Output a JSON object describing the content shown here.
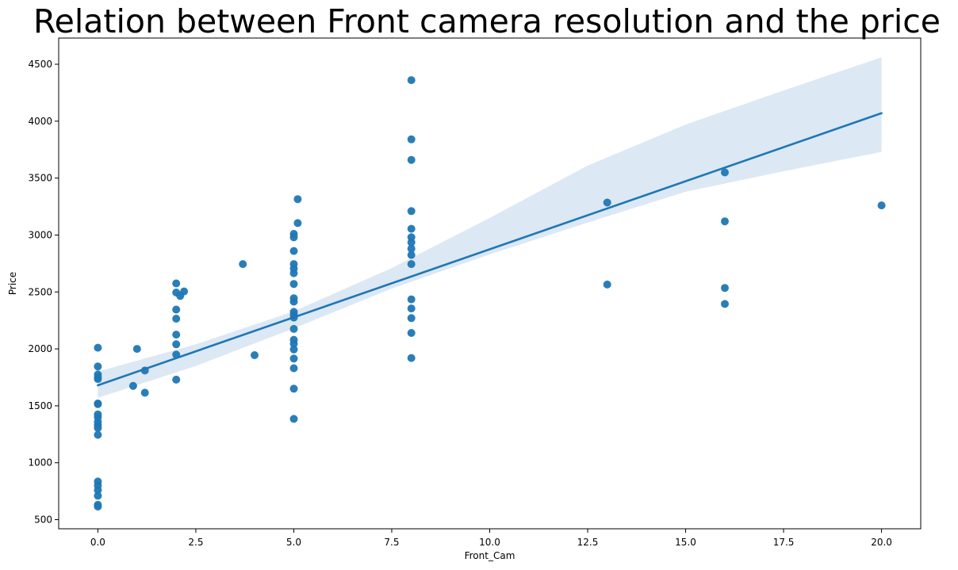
{
  "chart_data": {
    "type": "scatter",
    "title": "Relation between Front camera resolution and the price",
    "xlabel": "Front_Cam",
    "ylabel": "Price",
    "xlim": [
      -1.0,
      21.0
    ],
    "ylim": [
      420,
      4730
    ],
    "xticks": [
      0.0,
      2.5,
      5.0,
      7.5,
      10.0,
      12.5,
      15.0,
      17.5,
      20.0
    ],
    "xtick_labels": [
      "0.0",
      "2.5",
      "5.0",
      "7.5",
      "10.0",
      "12.5",
      "15.0",
      "17.5",
      "20.0"
    ],
    "yticks": [
      500,
      1000,
      1500,
      2000,
      2500,
      3000,
      3500,
      4000,
      4500
    ],
    "ytick_labels": [
      "500",
      "1000",
      "1500",
      "2000",
      "2500",
      "3000",
      "3500",
      "4000",
      "4500"
    ],
    "grid": false,
    "colors": {
      "points": "#1f77b4",
      "line": "#1f77b4",
      "band": "#dce8f4"
    },
    "points": [
      {
        "x": 0,
        "y": 2010
      },
      {
        "x": 0,
        "y": 1845
      },
      {
        "x": 0,
        "y": 1775
      },
      {
        "x": 0,
        "y": 1750
      },
      {
        "x": 0,
        "y": 1735
      },
      {
        "x": 0,
        "y": 1520
      },
      {
        "x": 0,
        "y": 1515
      },
      {
        "x": 0,
        "y": 1425
      },
      {
        "x": 0,
        "y": 1400
      },
      {
        "x": 0,
        "y": 1360
      },
      {
        "x": 0,
        "y": 1330
      },
      {
        "x": 0,
        "y": 1305
      },
      {
        "x": 0,
        "y": 1245
      },
      {
        "x": 0,
        "y": 835
      },
      {
        "x": 0,
        "y": 800
      },
      {
        "x": 0,
        "y": 760
      },
      {
        "x": 0,
        "y": 710
      },
      {
        "x": 0,
        "y": 630
      },
      {
        "x": 0,
        "y": 615
      },
      {
        "x": 0.9,
        "y": 1675
      },
      {
        "x": 1.0,
        "y": 2000
      },
      {
        "x": 1.2,
        "y": 1810
      },
      {
        "x": 1.2,
        "y": 1615
      },
      {
        "x": 2,
        "y": 2575
      },
      {
        "x": 2,
        "y": 2495
      },
      {
        "x": 2,
        "y": 2345
      },
      {
        "x": 2,
        "y": 2265
      },
      {
        "x": 2,
        "y": 2125
      },
      {
        "x": 2,
        "y": 2040
      },
      {
        "x": 2,
        "y": 1950
      },
      {
        "x": 2,
        "y": 1730
      },
      {
        "x": 2.1,
        "y": 2465
      },
      {
        "x": 2.2,
        "y": 2505
      },
      {
        "x": 3.7,
        "y": 2745
      },
      {
        "x": 4.0,
        "y": 1945
      },
      {
        "x": 5,
        "y": 3010
      },
      {
        "x": 5,
        "y": 2980
      },
      {
        "x": 5,
        "y": 2860
      },
      {
        "x": 5,
        "y": 2745
      },
      {
        "x": 5,
        "y": 2705
      },
      {
        "x": 5,
        "y": 2665
      },
      {
        "x": 5,
        "y": 2570
      },
      {
        "x": 5,
        "y": 2445
      },
      {
        "x": 5,
        "y": 2415
      },
      {
        "x": 5,
        "y": 2325
      },
      {
        "x": 5,
        "y": 2300
      },
      {
        "x": 5,
        "y": 2275
      },
      {
        "x": 5,
        "y": 2175
      },
      {
        "x": 5,
        "y": 2080
      },
      {
        "x": 5,
        "y": 2045
      },
      {
        "x": 5,
        "y": 1995
      },
      {
        "x": 5,
        "y": 1915
      },
      {
        "x": 5,
        "y": 1830
      },
      {
        "x": 5,
        "y": 1650
      },
      {
        "x": 5,
        "y": 1385
      },
      {
        "x": 5.1,
        "y": 3315
      },
      {
        "x": 5.1,
        "y": 3105
      },
      {
        "x": 8,
        "y": 4360
      },
      {
        "x": 8,
        "y": 3840
      },
      {
        "x": 8,
        "y": 3660
      },
      {
        "x": 8,
        "y": 3210
      },
      {
        "x": 8,
        "y": 3055
      },
      {
        "x": 8,
        "y": 2980
      },
      {
        "x": 8,
        "y": 2935
      },
      {
        "x": 8,
        "y": 2880
      },
      {
        "x": 8,
        "y": 2825
      },
      {
        "x": 8,
        "y": 2745
      },
      {
        "x": 8,
        "y": 2435
      },
      {
        "x": 8,
        "y": 2355
      },
      {
        "x": 8,
        "y": 2270
      },
      {
        "x": 8,
        "y": 2140
      },
      {
        "x": 8,
        "y": 1920
      },
      {
        "x": 13,
        "y": 3285
      },
      {
        "x": 13,
        "y": 2565
      },
      {
        "x": 16,
        "y": 3550
      },
      {
        "x": 16,
        "y": 3120
      },
      {
        "x": 16,
        "y": 2535
      },
      {
        "x": 16,
        "y": 2395
      },
      {
        "x": 20,
        "y": 3260
      }
    ],
    "regression": {
      "line": [
        {
          "x": 0,
          "y": 1680
        },
        {
          "x": 20,
          "y": 4070
        }
      ],
      "ci_upper": [
        {
          "x": 0,
          "y": 1800
        },
        {
          "x": 2.5,
          "y": 2040
        },
        {
          "x": 5,
          "y": 2330
        },
        {
          "x": 7.5,
          "y": 2710
        },
        {
          "x": 10,
          "y": 3150
        },
        {
          "x": 12.5,
          "y": 3610
        },
        {
          "x": 15,
          "y": 3970
        },
        {
          "x": 17.5,
          "y": 4270
        },
        {
          "x": 20,
          "y": 4560
        }
      ],
      "ci_lower": [
        {
          "x": 0,
          "y": 1570
        },
        {
          "x": 2.5,
          "y": 1850
        },
        {
          "x": 5,
          "y": 2180
        },
        {
          "x": 7.5,
          "y": 2530
        },
        {
          "x": 10,
          "y": 2830
        },
        {
          "x": 12.5,
          "y": 3110
        },
        {
          "x": 15,
          "y": 3380
        },
        {
          "x": 17.5,
          "y": 3560
        },
        {
          "x": 20,
          "y": 3730
        }
      ]
    }
  }
}
